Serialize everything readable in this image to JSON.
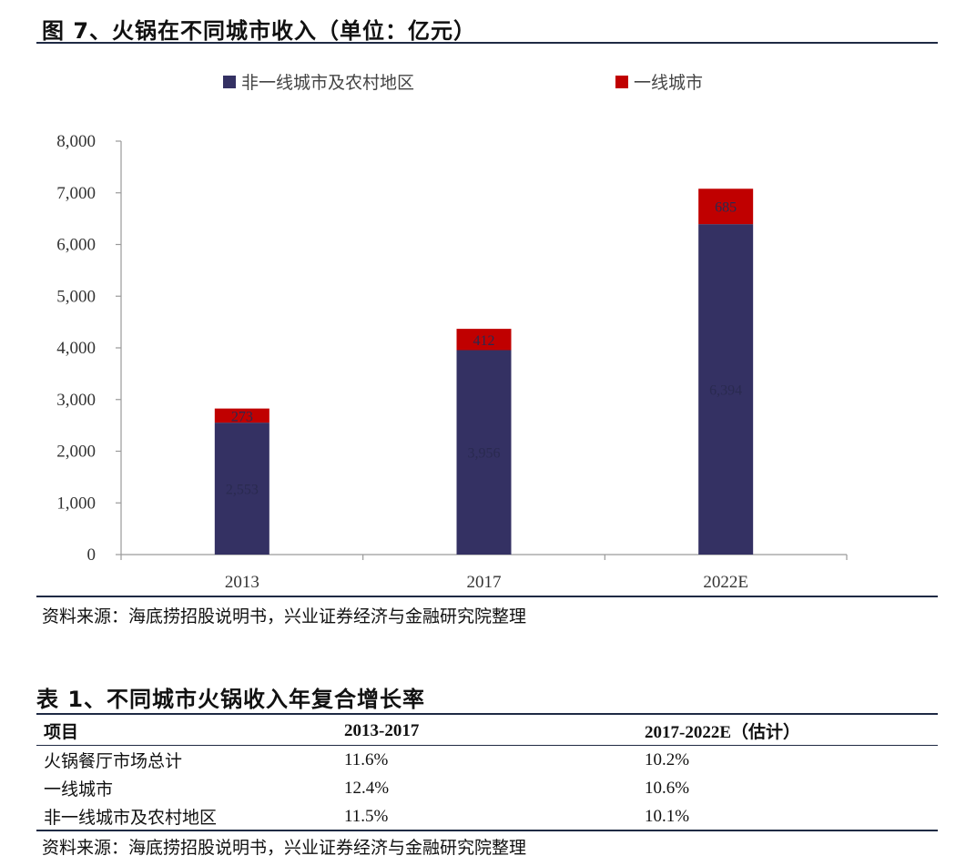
{
  "figure": {
    "title": "图 7、火锅在不同城市收入（单位：亿元）",
    "source": "资料来源：海底捞招股说明书，兴业证券经济与金融研究院整理"
  },
  "chart_data": {
    "type": "bar",
    "stacked": true,
    "categories": [
      "2013",
      "2017",
      "2022E"
    ],
    "series": [
      {
        "name": "非一线城市及农村地区",
        "values": [
          2553,
          3956,
          6394
        ],
        "color": "#343163",
        "labels": [
          "2,553",
          "3,956",
          "6,394"
        ]
      },
      {
        "name": "一线城市",
        "values": [
          273,
          412,
          685
        ],
        "color": "#c00000",
        "labels": [
          "273",
          "412",
          "685"
        ]
      }
    ],
    "yticks": [
      "0",
      "1,000",
      "2,000",
      "3,000",
      "4,000",
      "5,000",
      "6,000",
      "7,000",
      "8,000"
    ],
    "ylim": [
      0,
      8000
    ],
    "grid": false,
    "legend_position": "top"
  },
  "table": {
    "title": "表 1、不同城市火锅收入年复合增长率",
    "headers": [
      "项目",
      "2013-2017",
      "2017-2022E（估计）"
    ],
    "rows": [
      [
        "火锅餐厅市场总计",
        "11.6%",
        "10.2%"
      ],
      [
        "一线城市",
        "12.4%",
        "10.6%"
      ],
      [
        "非一线城市及农村地区",
        "11.5%",
        "10.1%"
      ]
    ],
    "source": "资料来源：海底捞招股说明书，兴业证券经济与金融研究院整理"
  }
}
